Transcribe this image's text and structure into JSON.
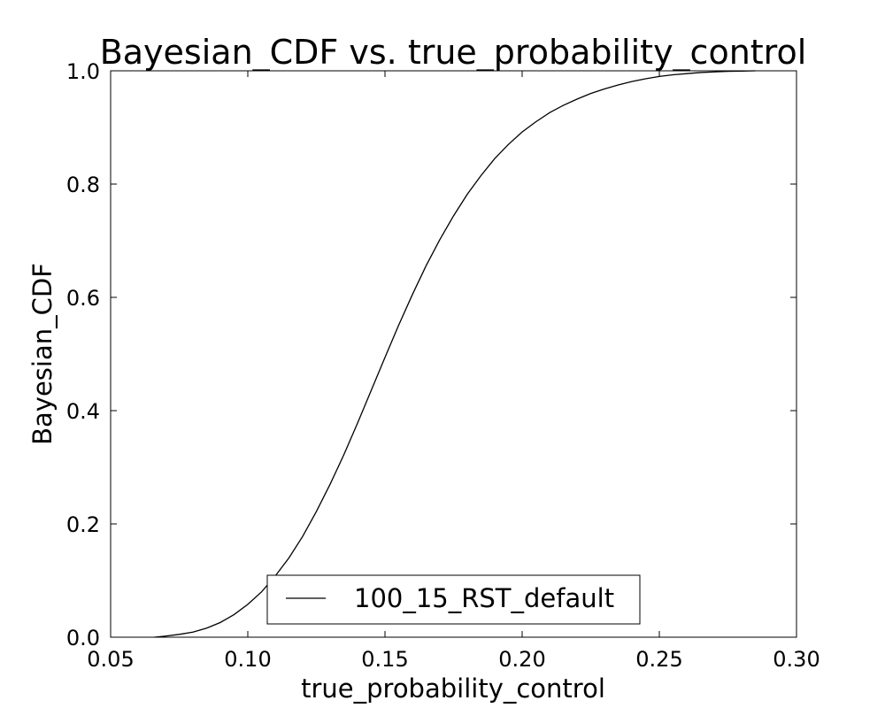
{
  "chart_data": {
    "type": "line",
    "title": "Bayesian_CDF vs. true_probability_control",
    "xlabel": "true_probability_control",
    "ylabel": "Bayesian_CDF",
    "xlim": [
      0.05,
      0.3
    ],
    "ylim": [
      0.0,
      1.0
    ],
    "xticks": [
      "0.05",
      "0.10",
      "0.15",
      "0.20",
      "0.25",
      "0.30"
    ],
    "yticks": [
      "0.0",
      "0.2",
      "0.4",
      "0.6",
      "0.8",
      "1.0"
    ],
    "grid": false,
    "legend": {
      "position": "bottom-center",
      "entries": [
        "100_15_RST_default"
      ]
    },
    "series": [
      {
        "name": "100_15_RST_default",
        "color": "#000000",
        "x": [
          0.066,
          0.07,
          0.075,
          0.08,
          0.085,
          0.09,
          0.095,
          0.1,
          0.105,
          0.11,
          0.115,
          0.12,
          0.125,
          0.13,
          0.135,
          0.14,
          0.145,
          0.15,
          0.155,
          0.16,
          0.165,
          0.17,
          0.175,
          0.18,
          0.185,
          0.19,
          0.195,
          0.2,
          0.205,
          0.21,
          0.215,
          0.22,
          0.225,
          0.23,
          0.235,
          0.24,
          0.245,
          0.25,
          0.255,
          0.26,
          0.265,
          0.27,
          0.275,
          0.28,
          0.285
        ],
        "y": [
          0.0,
          0.002,
          0.005,
          0.009,
          0.016,
          0.026,
          0.04,
          0.058,
          0.08,
          0.108,
          0.14,
          0.178,
          0.222,
          0.27,
          0.322,
          0.378,
          0.436,
          0.494,
          0.551,
          0.605,
          0.656,
          0.702,
          0.744,
          0.782,
          0.815,
          0.845,
          0.87,
          0.892,
          0.91,
          0.926,
          0.939,
          0.95,
          0.96,
          0.968,
          0.975,
          0.981,
          0.986,
          0.99,
          0.993,
          0.995,
          0.997,
          0.998,
          0.999,
          0.9995,
          1.0
        ]
      }
    ]
  }
}
